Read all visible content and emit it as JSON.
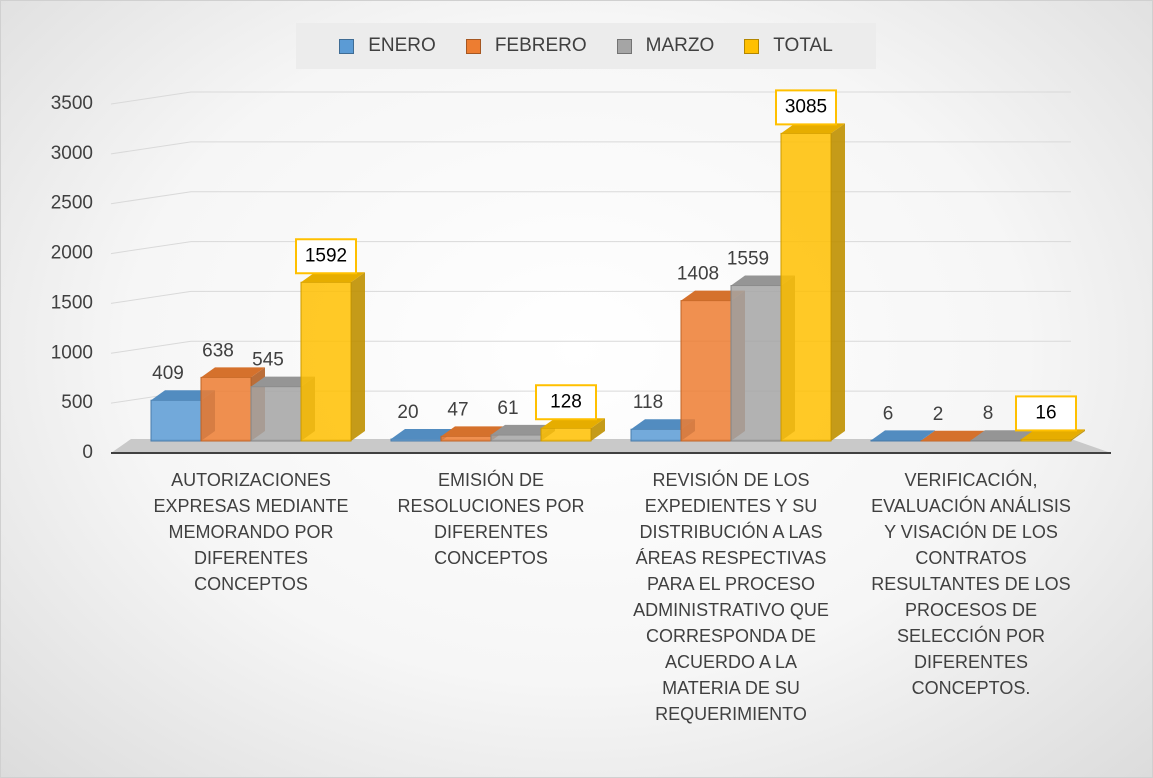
{
  "chart_data": {
    "type": "bar3d",
    "categories": [
      "AUTORIZACIONES EXPRESAS MEDIANTE MEMORANDO POR DIFERENTES CONCEPTOS",
      "EMISIÓN DE RESOLUCIONES POR DIFERENTES CONCEPTOS",
      "REVISIÓN DE LOS EXPEDIENTES Y SU DISTRIBUCIÓN A LAS ÁREAS RESPECTIVAS PARA EL PROCESO ADMINISTRATIVO QUE CORRESPONDA DE ACUERDO A LA MATERIA DE SU REQUERIMIENTO",
      "VERIFICACIÓN, EVALUACIÓN ANÁLISIS Y VISACIÓN DE LOS CONTRATOS RESULTANTES DE LOS PROCESOS DE SELECCIÓN POR DIFERENTES CONCEPTOS."
    ],
    "series": [
      {
        "name": "ENERO",
        "color": "#5b9bd5",
        "values": [
          409,
          20,
          118,
          6
        ]
      },
      {
        "name": "FEBRERO",
        "color": "#ed7d31",
        "values": [
          638,
          47,
          1408,
          2
        ]
      },
      {
        "name": "MARZO",
        "color": "#a5a5a5",
        "values": [
          545,
          61,
          1559,
          8
        ]
      },
      {
        "name": "TOTAL",
        "color": "#ffc000",
        "values": [
          1592,
          128,
          3085,
          16
        ]
      }
    ],
    "ylim": [
      0,
      3500
    ],
    "yticks": [
      0,
      500,
      1000,
      1500,
      2000,
      2500,
      3000,
      3500
    ],
    "grid": true,
    "legend": "top"
  }
}
